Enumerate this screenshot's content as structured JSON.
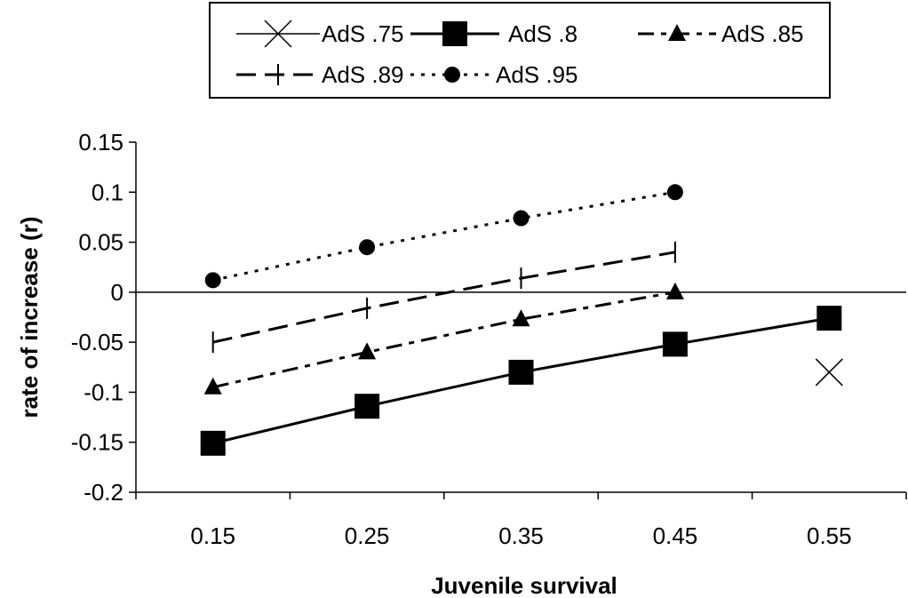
{
  "chart_data": {
    "type": "line",
    "xlabel": "Juvenile survival",
    "ylabel": "rate of increase (r)",
    "categories": [
      "0.15",
      "0.25",
      "0.35",
      "0.45",
      "0.55"
    ],
    "ylim": [
      -0.2,
      0.15
    ],
    "yticks": [
      "0.15",
      "0.1",
      "0.05",
      "0",
      "-0.05",
      "-0.1",
      "-0.15",
      "-0.2"
    ],
    "yticks_values": [
      0.15,
      0.1,
      0.05,
      0,
      -0.05,
      -0.1,
      -0.15,
      -0.2
    ],
    "grid": false,
    "legend_position": "top",
    "series": [
      {
        "name": "AdS .75",
        "marker": "x",
        "line": "solid-thin",
        "values": [
          null,
          null,
          null,
          null,
          -0.08
        ]
      },
      {
        "name": "AdS .8",
        "marker": "square",
        "line": "solid",
        "values": [
          -0.151,
          -0.114,
          -0.08,
          -0.052,
          -0.026
        ]
      },
      {
        "name": "AdS .85",
        "marker": "triangle",
        "line": "long-dash-alt",
        "values": [
          -0.095,
          -0.06,
          -0.027,
          0.0,
          null
        ]
      },
      {
        "name": "AdS .89",
        "marker": "tick",
        "line": "long-dash",
        "values": [
          -0.05,
          -0.016,
          0.014,
          0.04,
          null
        ]
      },
      {
        "name": "AdS .95",
        "marker": "circle",
        "line": "dotted",
        "values": [
          0.012,
          0.045,
          0.074,
          0.1,
          null
        ]
      }
    ]
  }
}
